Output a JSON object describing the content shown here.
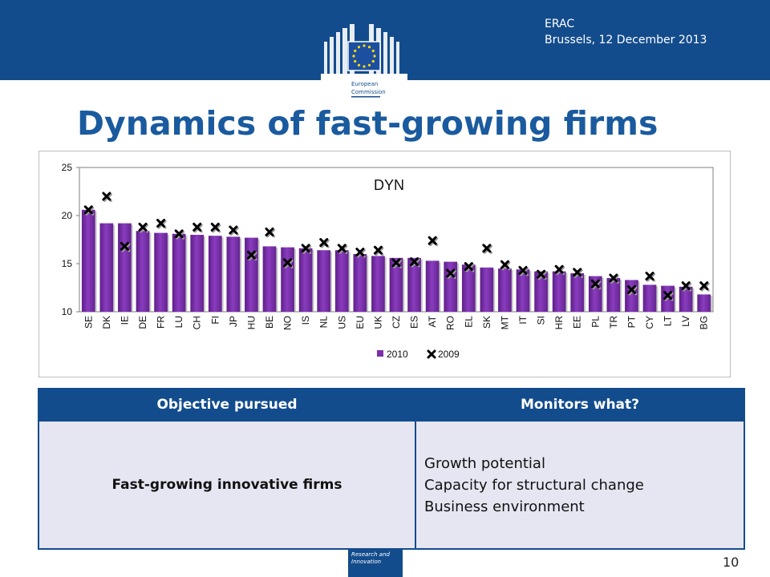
{
  "header": {
    "event": "ERAC",
    "date_location": "Brussels, 12 December 2013",
    "logo_text_line1": "European",
    "logo_text_line2": "Commission"
  },
  "title": "Dynamics of fast-growing firms",
  "chart_data": {
    "type": "bar",
    "title": "DYN",
    "ylim": [
      10,
      25
    ],
    "yticks": [
      10,
      15,
      20,
      25
    ],
    "grid": false,
    "legend_position": "bottom-center",
    "categories": [
      "SE",
      "DK",
      "IE",
      "DE",
      "FR",
      "LU",
      "CH",
      "FI",
      "JP",
      "HU",
      "BE",
      "NO",
      "IS",
      "NL",
      "US",
      "EU",
      "UK",
      "CZ",
      "ES",
      "AT",
      "RO",
      "EL",
      "SK",
      "MT",
      "IT",
      "SI",
      "HR",
      "EE",
      "PL",
      "TR",
      "PT",
      "CY",
      "LT",
      "LV",
      "BG"
    ],
    "series": [
      {
        "name": "2010",
        "type": "bar",
        "color": "#7b2fa8",
        "values": [
          20.6,
          19.2,
          19.2,
          18.4,
          18.2,
          18.1,
          18.0,
          17.9,
          17.8,
          17.7,
          16.8,
          16.7,
          16.6,
          16.4,
          16.4,
          16.0,
          15.8,
          15.6,
          15.6,
          15.3,
          15.2,
          14.9,
          14.6,
          14.5,
          14.4,
          14.2,
          14.2,
          14.0,
          13.7,
          13.5,
          13.3,
          12.8,
          12.7,
          12.6,
          11.8
        ]
      },
      {
        "name": "2009",
        "type": "marker",
        "color": "#000000",
        "values": [
          20.6,
          22.0,
          16.8,
          18.8,
          19.2,
          18.1,
          18.8,
          18.8,
          18.5,
          15.9,
          18.3,
          15.1,
          16.6,
          17.2,
          16.6,
          16.2,
          16.4,
          15.1,
          15.2,
          17.4,
          14.0,
          14.7,
          16.6,
          14.9,
          14.3,
          13.9,
          14.4,
          14.1,
          12.9,
          13.5,
          12.3,
          13.7,
          11.7,
          12.7,
          12.7
        ]
      }
    ]
  },
  "table": {
    "headers": [
      "Objective pursued",
      "Monitors what?"
    ],
    "objective": "Fast-growing innovative firms",
    "monitors": [
      "Growth potential",
      "Capacity for structural change",
      "Business environment"
    ]
  },
  "footer": {
    "badge_line1": "Research and",
    "badge_line2": "Innovation",
    "page_number": "10"
  }
}
